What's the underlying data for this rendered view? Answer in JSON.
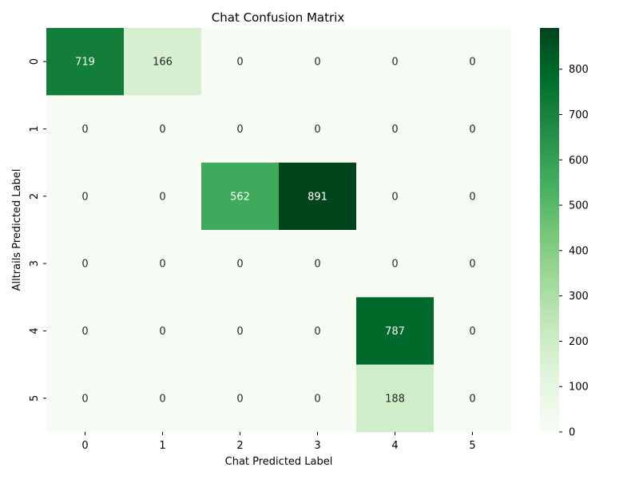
{
  "chart_data": {
    "type": "heatmap",
    "title": "Chat Confusion Matrix",
    "xlabel": "Chat Predicted Label",
    "ylabel": "Alltrails Predicted Label",
    "x_categories": [
      "0",
      "1",
      "2",
      "3",
      "4",
      "5"
    ],
    "y_categories": [
      "0",
      "1",
      "2",
      "3",
      "4",
      "5"
    ],
    "values": [
      [
        719,
        166,
        0,
        0,
        0,
        0
      ],
      [
        0,
        0,
        0,
        0,
        0,
        0
      ],
      [
        0,
        0,
        562,
        891,
        0,
        0
      ],
      [
        0,
        0,
        0,
        0,
        0,
        0
      ],
      [
        0,
        0,
        0,
        0,
        787,
        0
      ],
      [
        0,
        0,
        0,
        0,
        188,
        0
      ]
    ],
    "colormap": "Greens",
    "color_range": [
      0,
      891
    ],
    "colorbar_ticks": [
      0,
      100,
      200,
      300,
      400,
      500,
      600,
      700,
      800
    ]
  }
}
